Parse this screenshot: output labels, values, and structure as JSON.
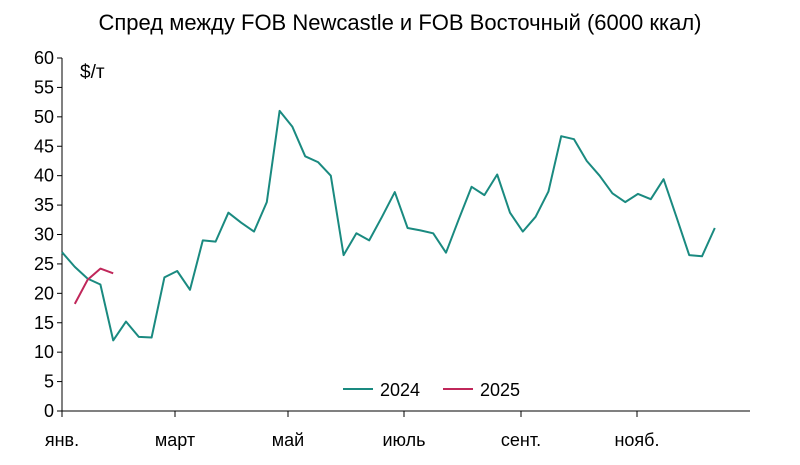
{
  "chart_data": {
    "type": "line",
    "title": "Спред между FOB Newcastle и FOB Восточный (6000 ккал)",
    "unit_label": "$/т",
    "ylim": [
      0,
      60
    ],
    "y_ticks": [
      0,
      5,
      10,
      15,
      20,
      25,
      30,
      35,
      40,
      45,
      50,
      55,
      60
    ],
    "x_tick_labels": [
      "янв.",
      "март",
      "май",
      "июль",
      "сент.",
      "нояб."
    ],
    "grid": false,
    "legend_position": "bottom-center",
    "series": [
      {
        "name": "2024",
        "color": "#1a8a80",
        "x_week": [
          1,
          2,
          3,
          4,
          5,
          6,
          7,
          8,
          9,
          10,
          11,
          12,
          13,
          14,
          15,
          16,
          17,
          18,
          19,
          20,
          21,
          22,
          23,
          24,
          25,
          26,
          27,
          28,
          29,
          30,
          31,
          32,
          33,
          34,
          35,
          36,
          37,
          38,
          39,
          40,
          41,
          42,
          43,
          44,
          45,
          46,
          47,
          48,
          49,
          50,
          51,
          52
        ],
        "values": [
          27,
          24.5,
          22.5,
          21.5,
          12,
          15.2,
          12.6,
          12.5,
          22.7,
          23.8,
          20.6,
          29,
          28.8,
          33.7,
          32,
          30.5,
          35.5,
          51,
          48.3,
          43.3,
          42.3,
          40,
          26.5,
          30.2,
          29,
          33,
          37.2,
          31.1,
          30.7,
          30.2,
          26.9,
          32.6,
          38.1,
          36.7,
          40.2,
          33.7,
          30.5,
          33,
          37.3,
          46.7,
          46.2,
          42.5,
          40,
          37,
          35.5,
          36.9,
          36,
          39.4,
          33,
          26.5,
          26.3,
          31.1
        ]
      },
      {
        "name": "2025",
        "color": "#c0275a",
        "x_week": [
          2,
          3,
          4,
          5
        ],
        "values": [
          18.2,
          22.3,
          24.2,
          23.4
        ]
      }
    ]
  }
}
